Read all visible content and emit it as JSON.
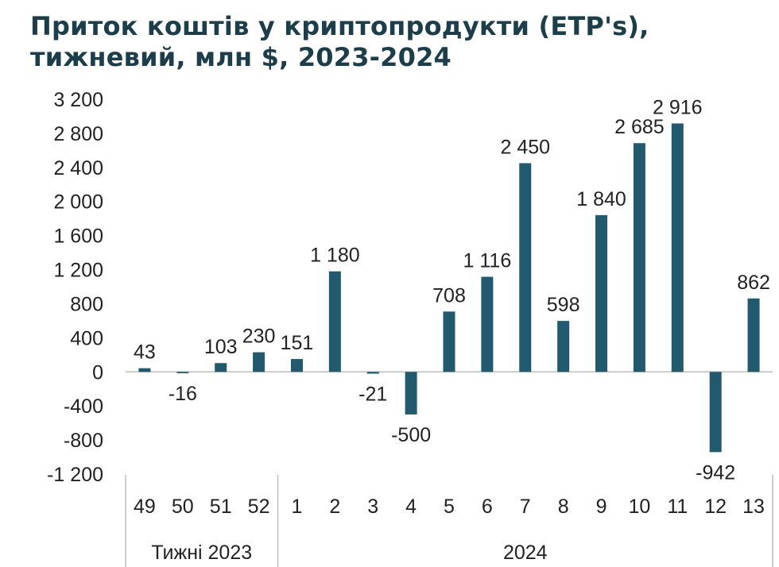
{
  "chart_data": {
    "type": "bar",
    "title": "Приток коштів у криптопродукти (ETP's), тижневий, млн $, 2023-2024",
    "title_lines": [
      "Приток коштів у криптопродукти (ETP's),",
      "тижневий, млн $, 2023-2024"
    ],
    "categories": [
      "49",
      "50",
      "51",
      "52",
      "1",
      "2",
      "3",
      "4",
      "5",
      "6",
      "7",
      "8",
      "9",
      "10",
      "11",
      "12",
      "13"
    ],
    "values": [
      43,
      -16,
      103,
      230,
      151,
      1180,
      -21,
      -500,
      708,
      1116,
      2450,
      598,
      1840,
      2685,
      2916,
      -942,
      862
    ],
    "value_labels": [
      "43",
      "-16",
      "103",
      "230",
      "151",
      "1 180",
      "-21",
      "-500",
      "708",
      "1 116",
      "2 450",
      "598",
      "1 840",
      "2 685",
      "2 916",
      "-942",
      "862"
    ],
    "yticks": [
      "3 200",
      "2 800",
      "2 400",
      "2 000",
      "1 600",
      "1 200",
      "800",
      "400",
      "0",
      "-400",
      "-800",
      "-1 200"
    ],
    "ytick_values": [
      3200,
      2800,
      2400,
      2000,
      1600,
      1200,
      800,
      400,
      0,
      -400,
      -800,
      -1200
    ],
    "ylim": [
      -1200,
      3200
    ],
    "groups": [
      {
        "label": "Тижні 2023",
        "count": 4
      },
      {
        "label": "2024",
        "count": 13
      }
    ],
    "xlabel": "",
    "ylabel": "",
    "grid": false,
    "bar_color": "#215a6e"
  }
}
